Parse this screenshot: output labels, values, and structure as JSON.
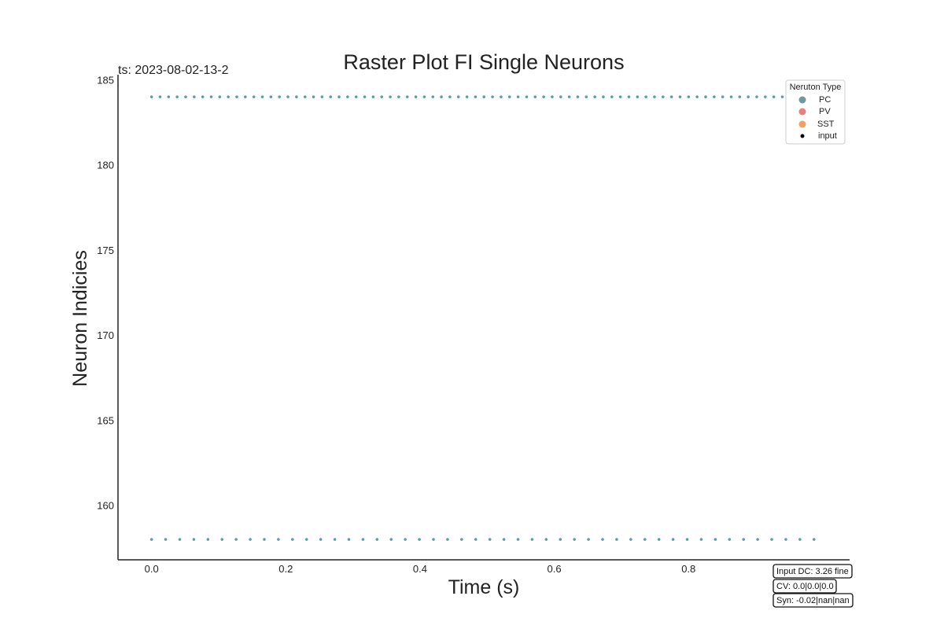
{
  "chart_data": {
    "type": "scatter",
    "title": "Raster Plot FI Single Neurons",
    "subtitle": "ts: 2023-08-02-13-2",
    "xlabel": "Time (s)",
    "ylabel": "Neuron Indicies",
    "xlim": [
      -0.05,
      1.04
    ],
    "ylim": [
      156.8,
      185.3
    ],
    "xticks": [
      0.0,
      0.2,
      0.4,
      0.6,
      0.8
    ],
    "xtick_labels": [
      "0.0",
      "0.2",
      "0.4",
      "0.6",
      "0.8"
    ],
    "yticks": [
      160,
      165,
      170,
      175,
      180,
      185
    ],
    "ytick_labels": [
      "160",
      "165",
      "170",
      "175",
      "180",
      "185"
    ],
    "grid": false,
    "legend": {
      "title": "Neruton Type",
      "position": "top-right",
      "entries": [
        {
          "label": "PC",
          "color": "#6a9aa2",
          "marker": "circle"
        },
        {
          "label": "PV",
          "color": "#e88080",
          "marker": "circle"
        },
        {
          "label": "SST",
          "color": "#f0a060",
          "marker": "circle"
        },
        {
          "label": "input",
          "color": "#000000",
          "marker": "small-circle"
        }
      ]
    },
    "series": [
      {
        "neuron_index": 184,
        "color": "#5f9ea0",
        "spike_start": 0.0,
        "spike_interval": 0.0127,
        "spike_end": 0.99
      },
      {
        "neuron_index": 158,
        "color": "#5f9ea0",
        "spike_start": 0.0,
        "spike_interval": 0.021,
        "spike_end": 0.99
      }
    ],
    "annotations": [
      {
        "text": "Input DC: 3.26 fine"
      },
      {
        "text": "CV: 0.0|0.0|0.0"
      },
      {
        "text": "Syn: -0.02|nan|nan"
      }
    ]
  }
}
